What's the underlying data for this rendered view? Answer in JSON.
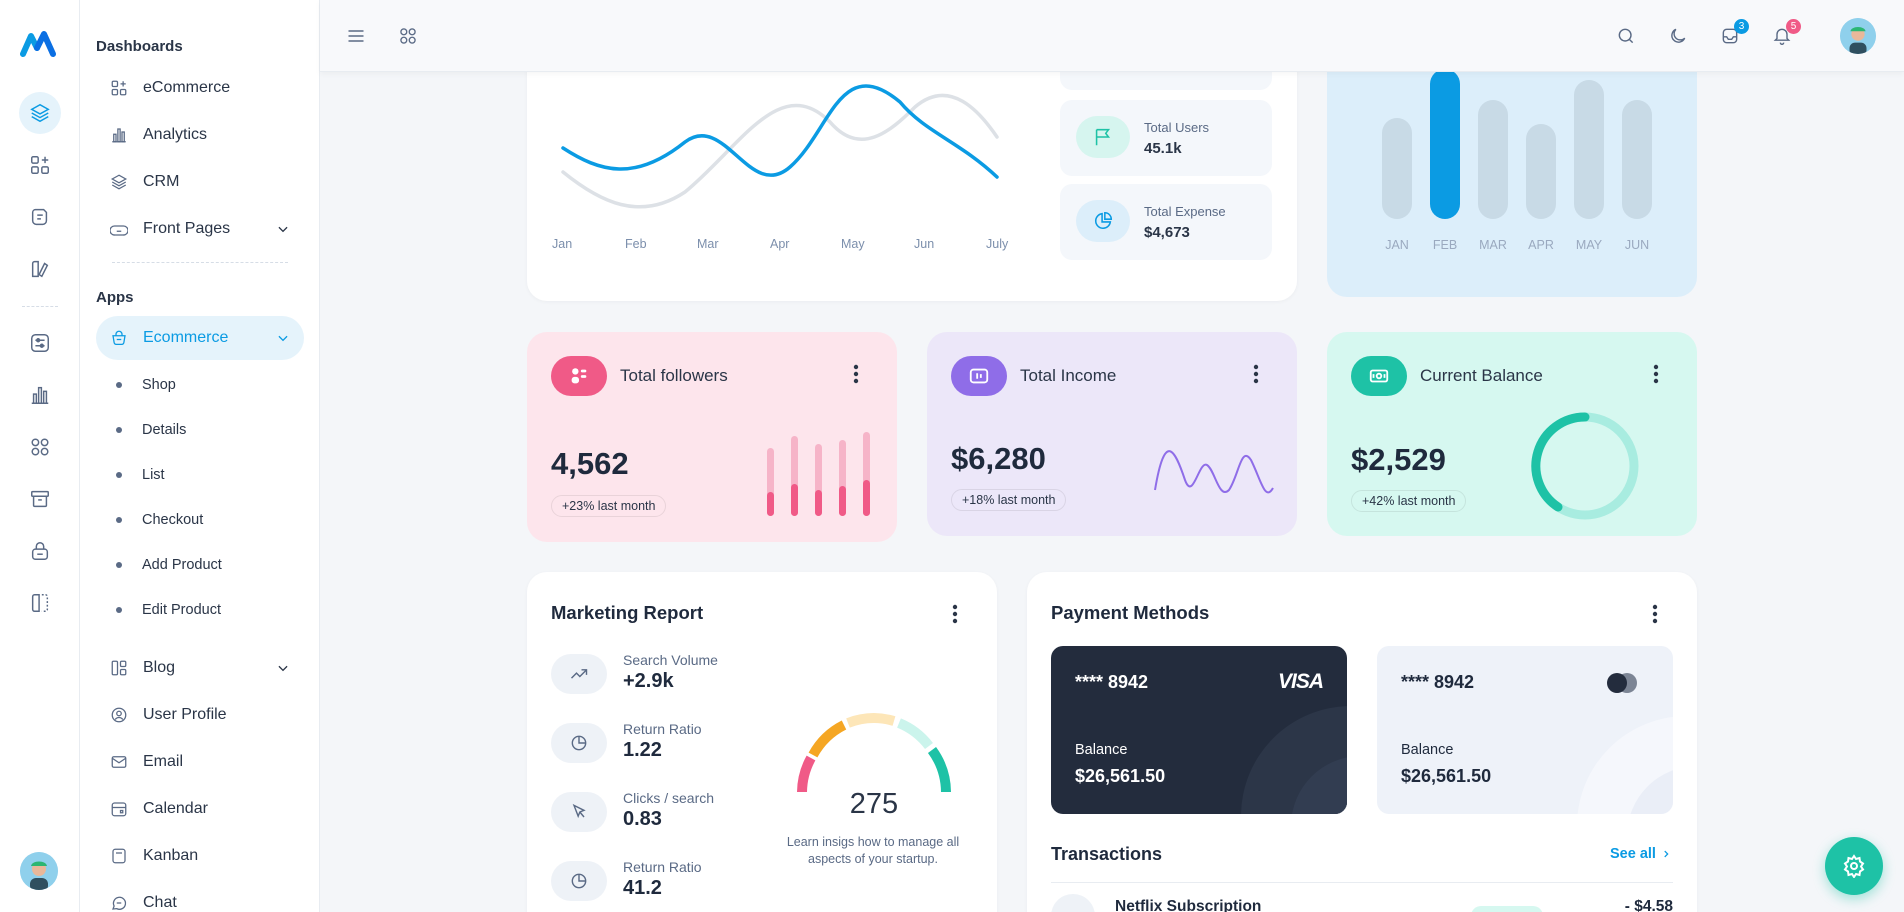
{
  "sidebar": {
    "section_dashboards": "Dashboards",
    "section_apps": "Apps",
    "dashboards": [
      {
        "label": "eCommerce"
      },
      {
        "label": "Analytics"
      },
      {
        "label": "CRM"
      },
      {
        "label": "Front Pages"
      }
    ],
    "ecommerce_label": "Ecommerce",
    "ecommerce_sub": [
      "Shop",
      "Details",
      "List",
      "Checkout",
      "Add Product",
      "Edit Product"
    ],
    "apps": [
      {
        "label": "Blog"
      },
      {
        "label": "User Profile"
      },
      {
        "label": "Email"
      },
      {
        "label": "Calendar"
      },
      {
        "label": "Kanban"
      },
      {
        "label": "Chat"
      }
    ]
  },
  "header": {
    "messages_count": "3",
    "notifications_count": "5"
  },
  "line_chart": {
    "months": [
      "Jan",
      "Feb",
      "Mar",
      "Apr",
      "May",
      "Jun",
      "July"
    ]
  },
  "stats": {
    "users_label": "Total Users",
    "users_value": "45.1k",
    "expense_label": "Total Expense",
    "expense_value": "$4,673"
  },
  "bar_chart": {
    "months": [
      "JAN",
      "FEB",
      "MAR",
      "APR",
      "MAY",
      "JUN"
    ],
    "values": [
      55,
      82,
      65,
      52,
      76,
      65
    ],
    "highlight_index": 1,
    "highlight_color": "#0b9be3",
    "bar_color": "#c8dae6"
  },
  "followers": {
    "title": "Total followers",
    "value": "4,562",
    "change": "+23% last month",
    "accent": "#f05a87"
  },
  "income": {
    "title": "Total Income",
    "value": "$6,280",
    "change": "+18% last month",
    "accent": "#8f6de8"
  },
  "balance": {
    "title": "Current Balance",
    "value": "$2,529",
    "change": "+42% last month",
    "accent": "#1ec2a6"
  },
  "marketing": {
    "title": "Marketing Report",
    "rows": [
      {
        "label": "Search Volume",
        "value": "+2.9k"
      },
      {
        "label": "Return Ratio",
        "value": "1.22"
      },
      {
        "label": "Clicks / search",
        "value": "0.83"
      },
      {
        "label": "Return Ratio",
        "value": "41.2"
      }
    ],
    "gauge_value": "275",
    "gauge_text_1": "Learn insigs how to manage all",
    "gauge_text_2": "aspects of your startup."
  },
  "payment": {
    "title": "Payment Methods",
    "card1_number": "**** 8942",
    "card1_brand": "VISA",
    "card1_balance_label": "Balance",
    "card1_balance": "$26,561.50",
    "card2_number": "**** 8942",
    "card2_balance_label": "Balance",
    "card2_balance": "$26,561.50",
    "transactions_title": "Transactions",
    "see_all": "See all",
    "transaction_name": "Netflix Subscription",
    "transaction_amount": "- $4.58"
  }
}
